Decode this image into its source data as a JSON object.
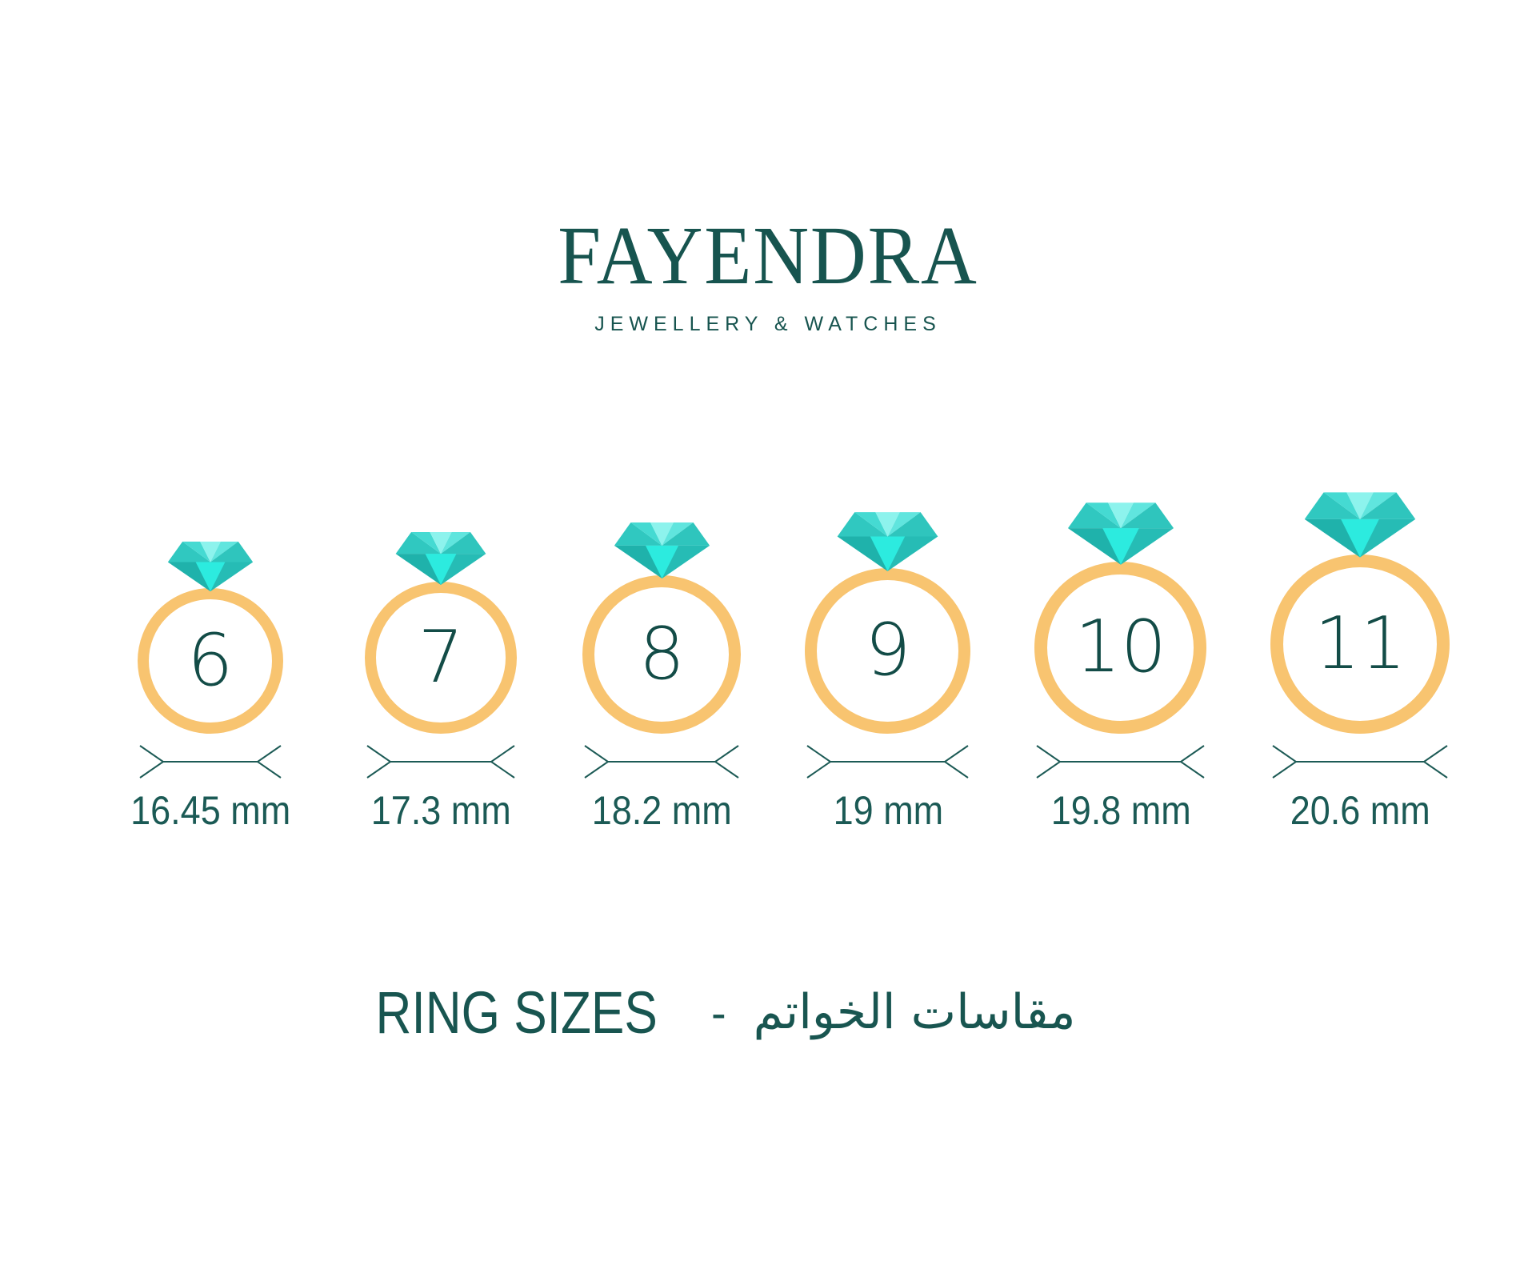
{
  "brand": {
    "name": "FAYENDRA",
    "tagline": "JEWELLERY & WATCHES"
  },
  "rings": [
    {
      "size": "6",
      "diameter": "16.45 mm"
    },
    {
      "size": "7",
      "diameter": "17.3 mm"
    },
    {
      "size": "8",
      "diameter": "18.2 mm"
    },
    {
      "size": "9",
      "diameter": "19 mm"
    },
    {
      "size": "10",
      "diameter": "19.8 mm"
    },
    {
      "size": "11",
      "diameter": "20.6 mm"
    }
  ],
  "footer": {
    "title_en": "RING SIZES",
    "separator": "-",
    "title_ar": "مقاسات الخواتم"
  },
  "colors": {
    "brand_teal": "#17544F",
    "text_teal": "#1B5A55",
    "number_teal": "#134C47",
    "ring_gold": "#F8C470",
    "diamond_bright": "#2CEBDF",
    "diamond_light": "#8DF3ED",
    "diamond_medium": "#45DAD2",
    "diamond_dark": "#1FB2AB"
  }
}
